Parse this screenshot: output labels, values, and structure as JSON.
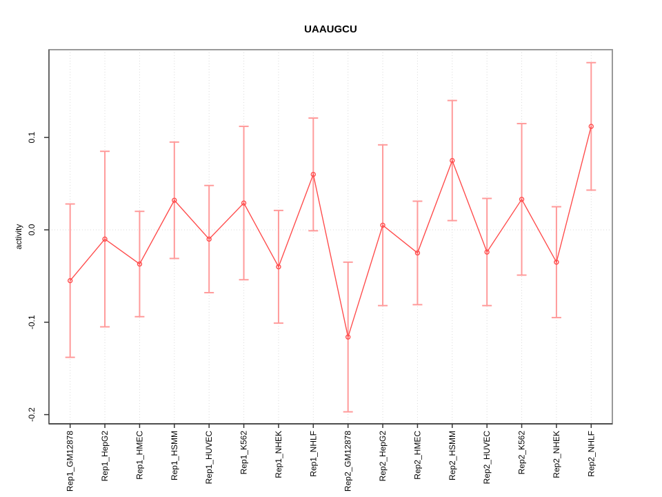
{
  "chart_data": {
    "type": "line",
    "title": "UAAUGCU",
    "ylabel": "activity",
    "xlabel": "",
    "categories": [
      "Rep1_GM12878",
      "Rep1_HepG2",
      "Rep1_HMEC",
      "Rep1_HSMM",
      "Rep1_HUVEC",
      "Rep1_K562",
      "Rep1_NHEK",
      "Rep1_NHLF",
      "Rep2_GM12878",
      "Rep2_HepG2",
      "Rep2_HMEC",
      "Rep2_HSMM",
      "Rep2_HUVEC",
      "Rep2_K562",
      "Rep2_NHEK",
      "Rep2_NHLF"
    ],
    "series": [
      {
        "name": "activity",
        "marker": "open-circle",
        "values": [
          -0.055,
          -0.01,
          -0.037,
          0.032,
          -0.01,
          0.029,
          -0.04,
          0.06,
          -0.116,
          0.005,
          -0.025,
          0.075,
          -0.024,
          0.033,
          -0.035,
          0.112
        ],
        "errors": [
          0.083,
          0.095,
          0.057,
          0.063,
          0.058,
          0.083,
          0.061,
          0.061,
          0.081,
          0.087,
          0.056,
          0.065,
          0.058,
          0.082,
          0.06,
          0.069
        ]
      }
    ],
    "yticks": [
      {
        "value": 0.1,
        "label": "0.1"
      },
      {
        "value": 0.0,
        "label": "0.0"
      },
      {
        "value": -0.1,
        "label": "-0.1"
      },
      {
        "value": -0.2,
        "label": "-0.2"
      }
    ],
    "ylim": [
      -0.21,
      0.195
    ],
    "grid": {
      "vertical": "dotted line at every category",
      "horizontal": "dotted line at y=0 only"
    },
    "legend": "none",
    "colors": {
      "line": "#ff4d4d",
      "error_bar": "#ff9a9a",
      "gridline": "#d9d9d9",
      "box_border": "#999999",
      "axis": "#333333",
      "text": "#000000",
      "background": "#ffffff"
    }
  }
}
